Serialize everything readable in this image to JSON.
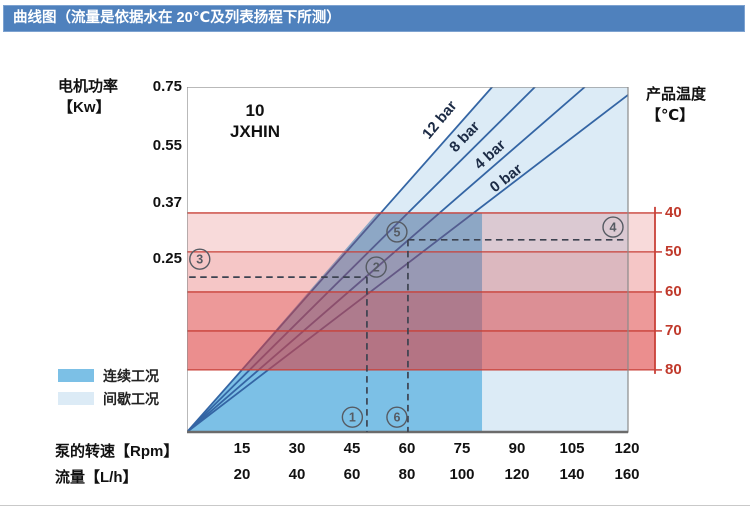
{
  "header": {
    "title": "曲线图（流量是依据水在 20℃及列表扬程下所测）",
    "bg_color": "#4f81bd"
  },
  "chart_data": {
    "type": "line",
    "title_lines": [
      "10",
      "JXHIN"
    ],
    "axes": {
      "left": {
        "label_lines": [
          "电机功率",
          "【Kw】"
        ],
        "ticks": [
          "0.75",
          "0.55",
          "0.37",
          "0.25"
        ],
        "ticks_f": [
          0.0,
          0.17,
          0.335,
          0.499
        ]
      },
      "right": {
        "label_lines": [
          "产品温度",
          "【℃】"
        ],
        "ticks": [
          "40",
          "50",
          "60",
          "70",
          "80"
        ],
        "color": "#c0392b"
      },
      "bottom_rpm": {
        "label": "泵的转速【Rpm】",
        "ticks": [
          "15",
          "30",
          "45",
          "60",
          "75",
          "90",
          "105",
          "120"
        ]
      },
      "bottom_flow": {
        "label": "流量【L/h】",
        "ticks": [
          "20",
          "40",
          "60",
          "80",
          "100",
          "120",
          "140",
          "160"
        ]
      }
    },
    "pressure_lines": [
      {
        "name": "12 bar",
        "x1": 0,
        "y1": 1,
        "x2": 0.692,
        "y2": 0,
        "label": {
          "fx": 0.581,
          "fy": 0.104,
          "angle": -50
        }
      },
      {
        "name": "8 bar",
        "x1": 0,
        "y1": 1,
        "x2": 0.789,
        "y2": 0,
        "label": {
          "fx": 0.637,
          "fy": 0.154,
          "angle": -46
        }
      },
      {
        "name": "4 bar",
        "x1": 0,
        "y1": 1,
        "x2": 0.902,
        "y2": 0,
        "label": {
          "fx": 0.694,
          "fy": 0.206,
          "angle": -42
        }
      },
      {
        "name": "0 bar",
        "x1": 0,
        "y1": 1,
        "x2": 1.0,
        "y2": 0.023,
        "label": {
          "fx": 0.73,
          "fy": 0.275,
          "angle": -38
        }
      }
    ],
    "line_color": "#3465a4",
    "regions": {
      "continuous": {
        "label": "连续工况",
        "color": "#7cc0e6",
        "polygon": [
          [
            0,
            1
          ],
          [
            0.431,
            0.365
          ],
          [
            0.669,
            0.365
          ],
          [
            0.669,
            1
          ]
        ]
      },
      "intermittent": {
        "label": "间歇工况",
        "color": "#dcebf6",
        "polygon": [
          [
            0,
            1
          ],
          [
            0.692,
            0
          ],
          [
            1,
            0
          ],
          [
            1,
            1
          ]
        ]
      }
    },
    "temperature_bands": {
      "boundaries_f": [
        0.365,
        0.478,
        0.594,
        0.707,
        0.82
      ],
      "fills": [
        "rgba(220,60,60,0.19)",
        "rgba(220,60,60,0.29)",
        "rgba(220,60,60,0.52)",
        "rgba(220,60,60,0.58)"
      ],
      "line_color": "#c84038"
    },
    "annotations": {
      "dash_color": "#3c4250",
      "dashes": [
        {
          "type": "h",
          "y": 0.551,
          "x1": 0.005,
          "x2": 0.408
        },
        {
          "type": "v",
          "x": 0.408,
          "y1": 0.551,
          "y2": 1.0
        },
        {
          "type": "h",
          "y": 0.443,
          "x1": 0.501,
          "x2": 1.0
        },
        {
          "type": "v",
          "x": 0.501,
          "y1": 0.443,
          "y2": 1.0
        }
      ],
      "markers": [
        {
          "n": "1",
          "fx": 0.375,
          "fy": 0.957
        },
        {
          "n": "2",
          "fx": 0.429,
          "fy": 0.522
        },
        {
          "n": "3",
          "fx": 0.029,
          "fy": 0.499
        },
        {
          "n": "4",
          "fx": 0.966,
          "fy": 0.406
        },
        {
          "n": "5",
          "fx": 0.476,
          "fy": 0.42
        },
        {
          "n": "6",
          "fx": 0.476,
          "fy": 0.957
        }
      ],
      "marker_color": "#565b63"
    },
    "legend": [
      {
        "label": "连续工况",
        "color": "#7cc0e6"
      },
      {
        "label": "间歇工况",
        "color": "#dcebf6"
      }
    ]
  }
}
